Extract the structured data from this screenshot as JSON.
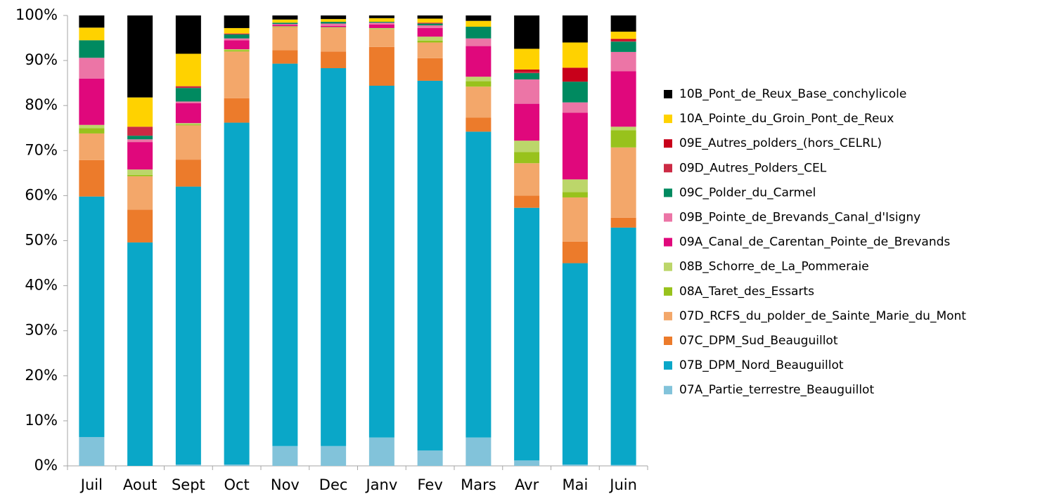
{
  "chart_data": {
    "type": "stacked_bar",
    "categories": [
      "Juil",
      "Aout",
      "Sept",
      "Oct",
      "Nov",
      "Dec",
      "Janv",
      "Fev",
      "Mars",
      "Avr",
      "Mai",
      "Juin"
    ],
    "series": [
      {
        "name": "07A_Partie_terrestre_Beauguillot",
        "color": "#82c3da",
        "values": [
          6.4,
          0,
          0.3,
          0.3,
          4.4,
          4.4,
          6.3,
          3.4,
          6.3,
          1.2,
          0.3,
          0.2
        ]
      },
      {
        "name": "07B_DPM_Nord_Beauguillot",
        "color": "#0aa7c8",
        "values": [
          53.4,
          49.6,
          61.7,
          75.9,
          84.9,
          83.9,
          78.1,
          82.1,
          67.9,
          56.1,
          44.7,
          52.7
        ]
      },
      {
        "name": "07C_DPM_Sud_Beauguillot",
        "color": "#ec7b2b",
        "values": [
          8.1,
          7.3,
          6.0,
          5.4,
          3.0,
          3.7,
          8.6,
          5.0,
          3.1,
          2.7,
          4.8,
          2.2
        ]
      },
      {
        "name": "07D_RCFS_du_polder_de_Sainte_Marie_du_Mont",
        "color": "#f3a76a",
        "values": [
          5.9,
          7.4,
          7.6,
          10.4,
          5.1,
          5.2,
          3.9,
          3.5,
          6.9,
          7.2,
          9.8,
          15.6
        ]
      },
      {
        "name": "08A_Taret_des_Essarts",
        "color": "#98c21c",
        "values": [
          1.2,
          0.3,
          0.2,
          0.3,
          0.1,
          0.1,
          0.1,
          0.4,
          1.2,
          2.5,
          1.2,
          3.8
        ]
      },
      {
        "name": "08B_Schorre_de_La_Pommeraie",
        "color": "#bcd66a",
        "values": [
          0.7,
          1.2,
          0.3,
          0.2,
          0.1,
          0.1,
          0.2,
          0.9,
          1.0,
          2.5,
          2.8,
          0.8
        ]
      },
      {
        "name": "09A_Canal_de_Carentan_Pointe_de_Brevands",
        "color": "#e0087c",
        "values": [
          10.3,
          6.1,
          4.4,
          2.0,
          0.3,
          0.3,
          0.8,
          1.9,
          6.8,
          8.2,
          14.8,
          12.3
        ]
      },
      {
        "name": "09B_Pointe_de_Brevands_Canal_d'Isigny",
        "color": "#ec75a6",
        "values": [
          4.6,
          0.6,
          0.4,
          0.4,
          0.2,
          0.5,
          0.4,
          0.6,
          1.7,
          5.4,
          2.3,
          4.3
        ]
      },
      {
        "name": "09C_Polder_du_Carmel",
        "color": "#008a60",
        "values": [
          3.9,
          0.8,
          3.0,
          0.9,
          0.3,
          0.4,
          0.2,
          0.4,
          2.6,
          1.4,
          4.6,
          2.3
        ]
      },
      {
        "name": "09D_Autres_Polders_CEL",
        "color": "#cc2a44",
        "values": [
          0,
          2.0,
          0.4,
          0.2,
          0,
          0,
          0,
          0.2,
          0,
          0.3,
          0,
          0.2
        ]
      },
      {
        "name": "09E_Autres_polders_(hors_CELRL)",
        "color": "#c8001a",
        "values": [
          0,
          0,
          0,
          0,
          0,
          0,
          0,
          0,
          0,
          0.5,
          3.1,
          0.4
        ]
      },
      {
        "name": "10A_Pointe_du_Groin_Pont_de_Reux",
        "color": "#ffd200",
        "values": [
          2.8,
          6.5,
          7.2,
          1.2,
          0.7,
          0.6,
          0.8,
          0.9,
          1.3,
          4.6,
          5.6,
          1.6
        ]
      },
      {
        "name": "10B_Pont_de_Reux_Base_conchylicole",
        "color": "#000000",
        "values": [
          2.7,
          18.2,
          8.5,
          2.8,
          0.9,
          0.8,
          0.6,
          0.7,
          1.2,
          7.4,
          6.0,
          3.6
        ]
      }
    ],
    "ylim": [
      0,
      100
    ],
    "yticks": [
      {
        "value": 0,
        "label": "0%"
      },
      {
        "value": 10,
        "label": "10%"
      },
      {
        "value": 20,
        "label": "20%"
      },
      {
        "value": 30,
        "label": "30%"
      },
      {
        "value": 40,
        "label": "40%"
      },
      {
        "value": 50,
        "label": "50%"
      },
      {
        "value": 60,
        "label": "60%"
      },
      {
        "value": 70,
        "label": "70%"
      },
      {
        "value": 80,
        "label": "80%"
      },
      {
        "value": 90,
        "label": "90%"
      },
      {
        "value": 100,
        "label": "100%"
      }
    ],
    "legend": "right",
    "legend_order": "reversed"
  }
}
